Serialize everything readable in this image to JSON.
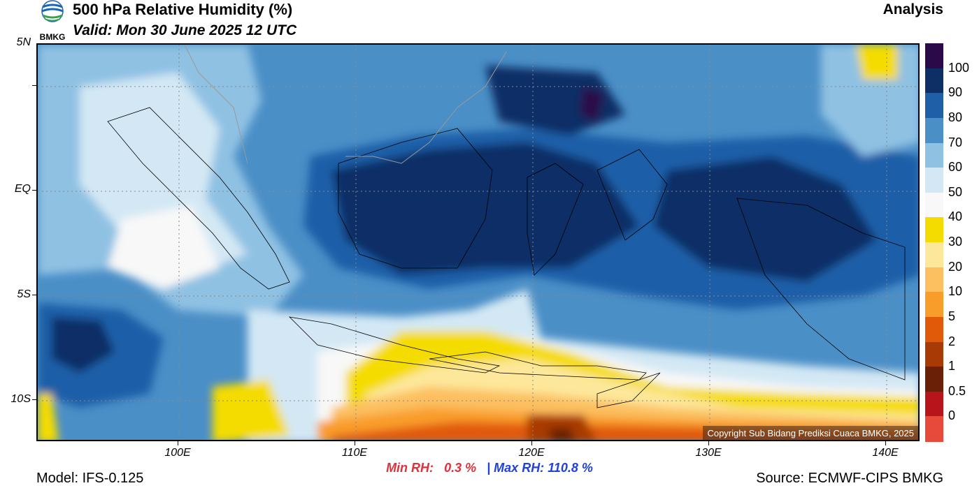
{
  "header": {
    "logo_text": "BMKG",
    "title": "500 hPa Relative Humidity (%)",
    "valid": "Valid: Mon 30 June 2025 12 UTC",
    "analysis": "Analysis"
  },
  "map": {
    "lat_labels": [
      "5N",
      "EQ",
      "5S",
      "10S"
    ],
    "lon_labels": [
      "100E",
      "110E",
      "120E",
      "130E",
      "140E"
    ],
    "copyright": "Copyright Sub Bidang Prediksi Cuaca BMKG, 2025"
  },
  "colorbar": {
    "labels": [
      "100",
      "90",
      "80",
      "70",
      "60",
      "50",
      "40",
      "30",
      "20",
      "10",
      "5",
      "2",
      "1",
      "0.5",
      "0"
    ],
    "colors": [
      "#2b0a4a",
      "#0d2f66",
      "#1f5fa8",
      "#4b8fc7",
      "#8fc1e3",
      "#d3e8f4",
      "#f8f8f8",
      "#f5dc00",
      "#fde79a",
      "#fcc060",
      "#f99d2a",
      "#e15a0a",
      "#a83a05",
      "#6a2006",
      "#b8141c",
      "#e74a3b"
    ]
  },
  "stats": {
    "min_label": "Min RH:",
    "min_value": "0.3 %",
    "separator": "|",
    "max_label": "Max RH:",
    "max_value": "110.8 %"
  },
  "footer": {
    "model": "Model: IFS-0.125",
    "source": "Source: ECMWF-CIPS BMKG"
  }
}
